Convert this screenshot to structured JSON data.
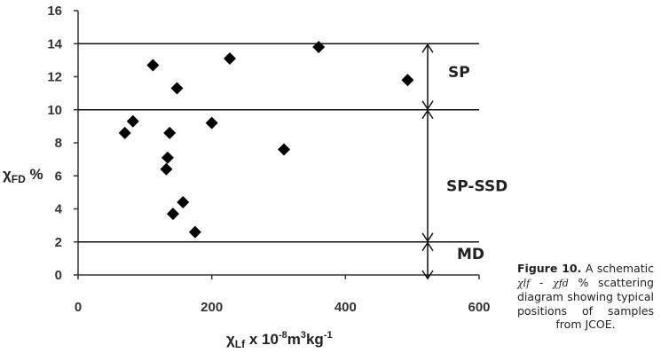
{
  "chart_data": {
    "type": "scatter",
    "xlabel": "χLf x 10-8m3kg-1",
    "ylabel": "χFD %",
    "xlim": [
      0,
      600
    ],
    "ylim": [
      0,
      16
    ],
    "x_ticks": [
      "0",
      "200",
      "400",
      "600"
    ],
    "y_ticks": [
      "0",
      "2",
      "4",
      "6",
      "8",
      "10",
      "12",
      "14",
      "16"
    ],
    "grid": false,
    "points": [
      {
        "x": 70,
        "y": 8.6
      },
      {
        "x": 82,
        "y": 9.3
      },
      {
        "x": 112,
        "y": 12.7
      },
      {
        "x": 132,
        "y": 6.4
      },
      {
        "x": 134,
        "y": 7.1
      },
      {
        "x": 137,
        "y": 8.6
      },
      {
        "x": 142,
        "y": 3.7
      },
      {
        "x": 148,
        "y": 11.3
      },
      {
        "x": 157,
        "y": 4.4
      },
      {
        "x": 175,
        "y": 2.6
      },
      {
        "x": 200,
        "y": 9.2
      },
      {
        "x": 227,
        "y": 13.1
      },
      {
        "x": 308,
        "y": 7.6
      },
      {
        "x": 360,
        "y": 13.8
      },
      {
        "x": 493,
        "y": 11.8
      }
    ],
    "threshold_lines": [
      2,
      10,
      14
    ],
    "zones": [
      {
        "label": "SP",
        "from": 10,
        "to": 14
      },
      {
        "label": "SP-SSD",
        "from": 2,
        "to": 10
      },
      {
        "label": "MD",
        "from": 0,
        "to": 2
      }
    ],
    "marker_color": "#000000"
  },
  "caption": {
    "label": "Figure 10.",
    "text_before": " A schematic ",
    "sym1": "χlf",
    "sep": " - ",
    "sym2": "χfd",
    "text_after": " % scattering diagram showing typical positions of samples from JCOE."
  }
}
